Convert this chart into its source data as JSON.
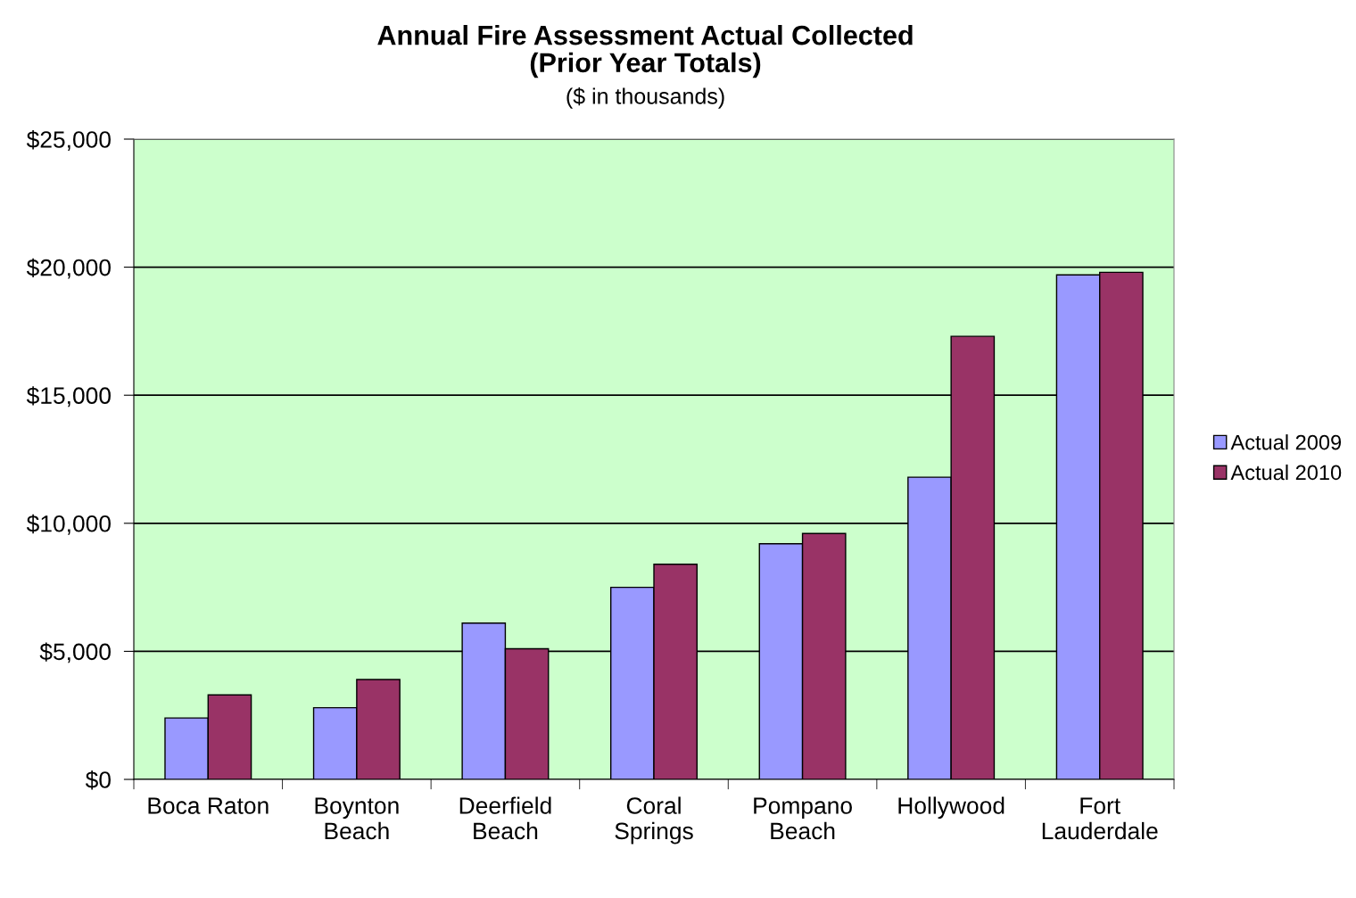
{
  "chart_data": {
    "type": "bar",
    "title": "Annual Fire Assessment Actual Collected\n(Prior Year Totals)",
    "subtitle": "($ in thousands)",
    "categories": [
      "Boca Raton",
      "Boynton\nBeach",
      "Deerfield\nBeach",
      "Coral\nSprings",
      "Pompano\nBeach",
      "Hollywood",
      "Fort\nLauderdale"
    ],
    "series": [
      {
        "name": "Actual 2009",
        "color": "#9999ff",
        "values": [
          2400,
          2800,
          6100,
          7500,
          9200,
          11800,
          19700
        ]
      },
      {
        "name": "Actual 2010",
        "color": "#993366",
        "values": [
          3300,
          3900,
          5100,
          8400,
          9600,
          17300,
          19800
        ]
      }
    ],
    "ylim": [
      0,
      25000
    ],
    "yticks": [
      {
        "value": 0,
        "label": "$0"
      },
      {
        "value": 5000,
        "label": "$5,000"
      },
      {
        "value": 10000,
        "label": "$10,000"
      },
      {
        "value": 15000,
        "label": "$15,000"
      },
      {
        "value": 20000,
        "label": "$20,000"
      },
      {
        "value": 25000,
        "label": "$25,000"
      }
    ],
    "grid": "y",
    "legend": "right"
  }
}
